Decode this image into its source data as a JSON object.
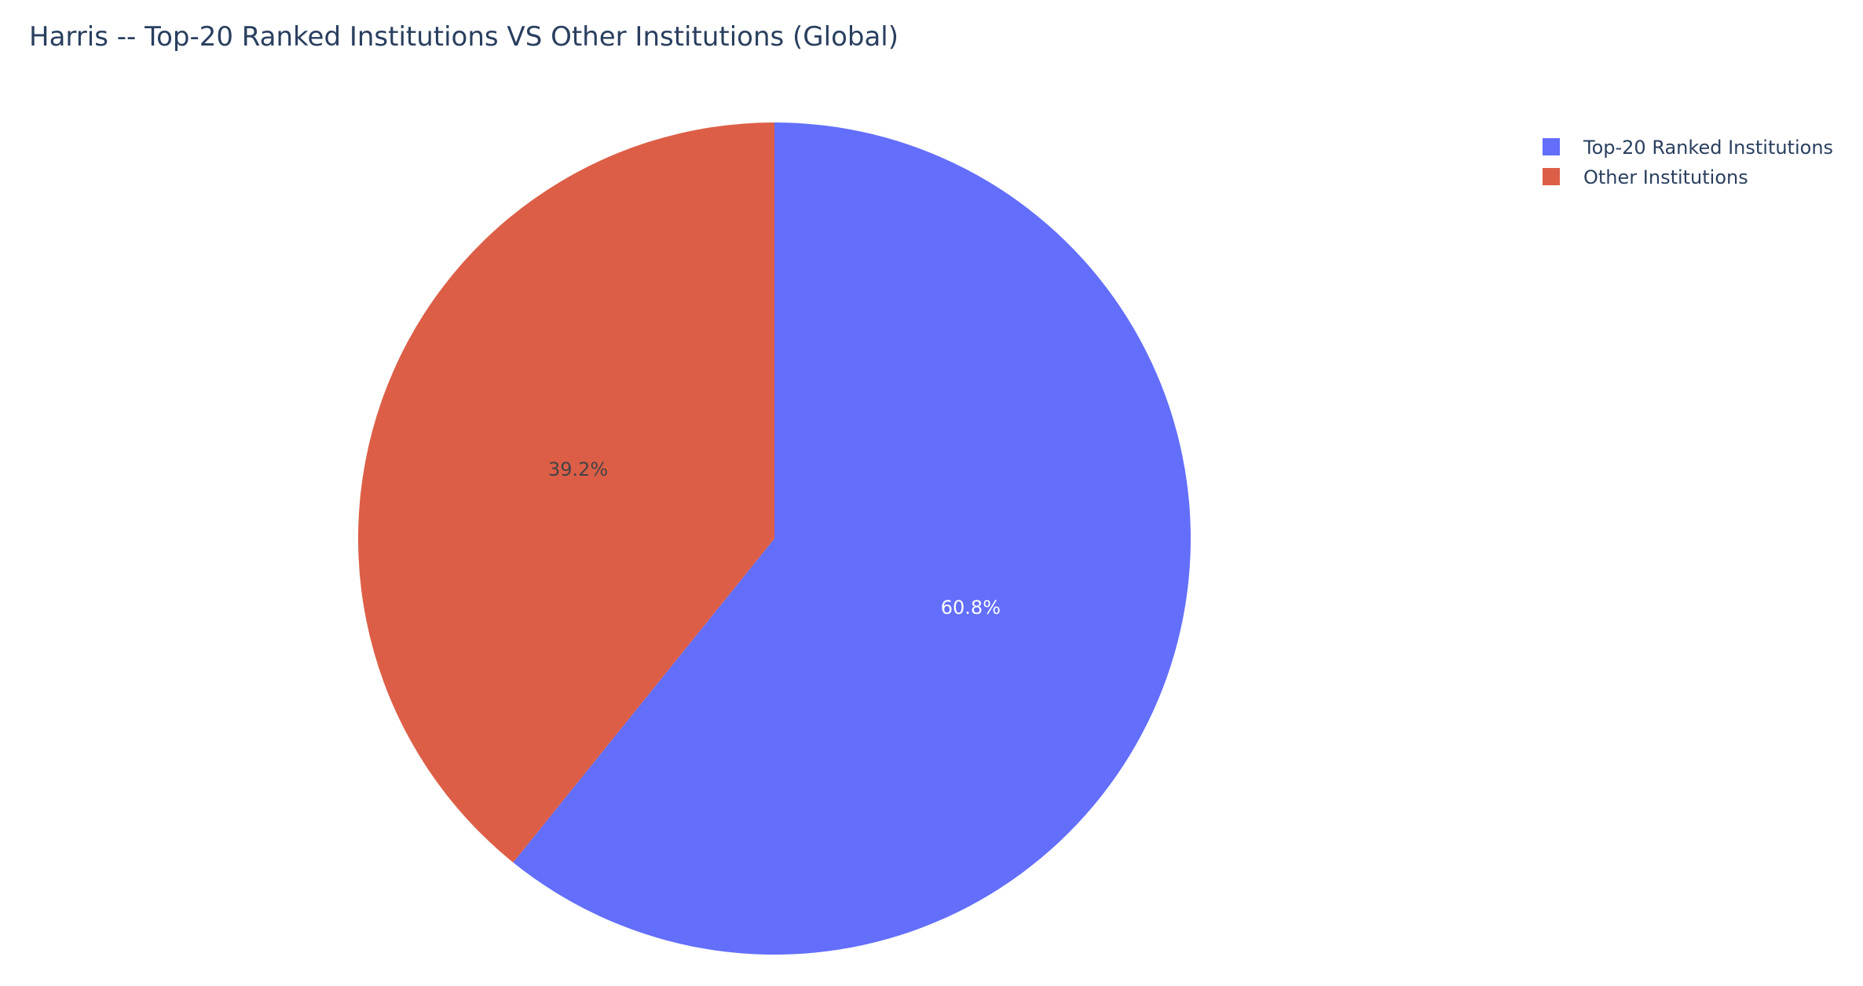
{
  "chart_data": {
    "type": "pie",
    "title": "Harris -- Top-20 Ranked Institutions VS Other Institutions (Global)",
    "slices": [
      {
        "label": "Top-20 Ranked Institutions",
        "value": 60.8,
        "text": "60.8%",
        "color": "#636efa",
        "text_color": "#ffffff"
      },
      {
        "label": "Other Institutions",
        "value": 39.2,
        "text": "39.2%",
        "color": "#dd5e47",
        "text_color": "#444444"
      }
    ],
    "legend_placement": "top-right",
    "direction": "clockwise",
    "start": "top"
  }
}
